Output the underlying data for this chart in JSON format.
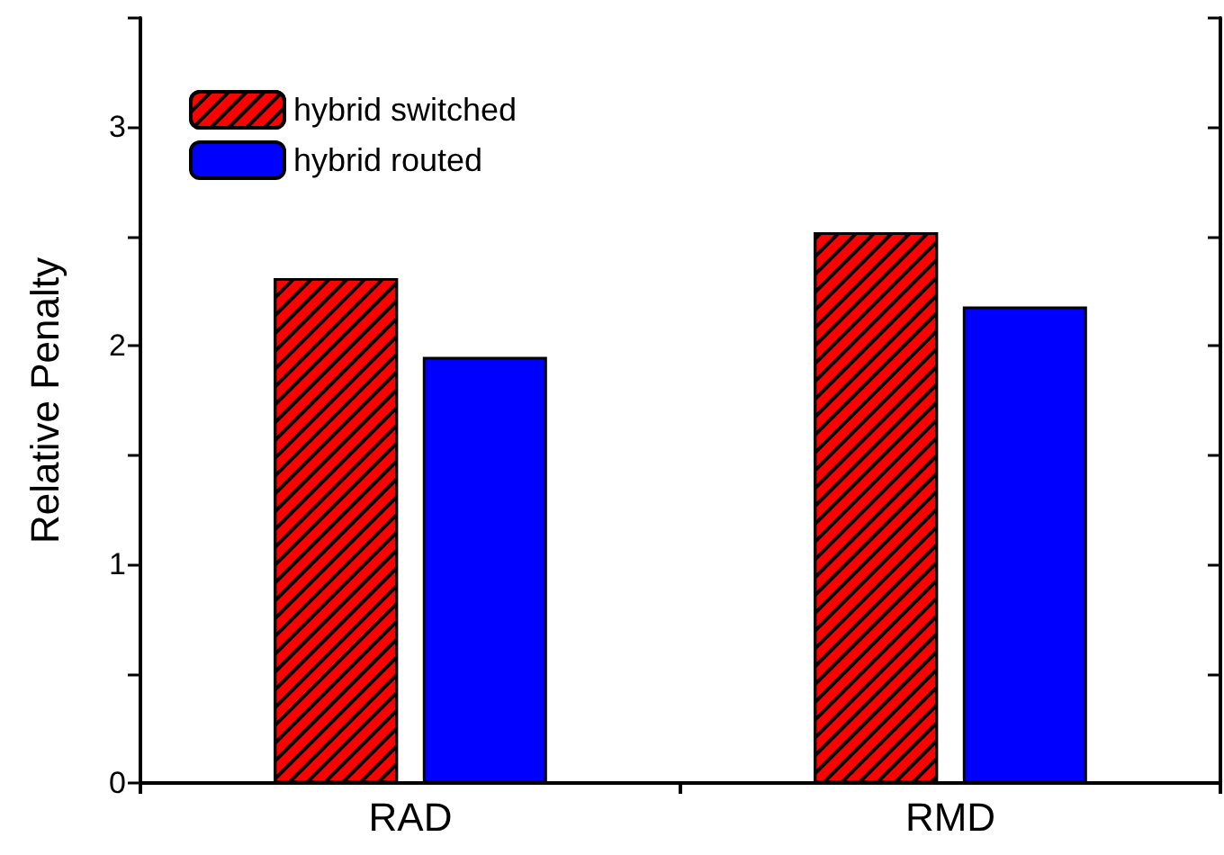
{
  "chart_data": {
    "type": "bar",
    "ylabel": "Relative Penalty",
    "categories": [
      "RAD",
      "RMD"
    ],
    "series": [
      {
        "name": "hybrid switched",
        "color": "#ff0000",
        "values": [
          2.31,
          2.52
        ]
      },
      {
        "name": "hybrid routed",
        "color": "#0000ff",
        "values": [
          1.95,
          2.18
        ]
      }
    ],
    "ylim": [
      0,
      3.5
    ],
    "yticks": [
      0,
      1,
      2,
      3
    ],
    "grid": false,
    "legend": "top left"
  }
}
